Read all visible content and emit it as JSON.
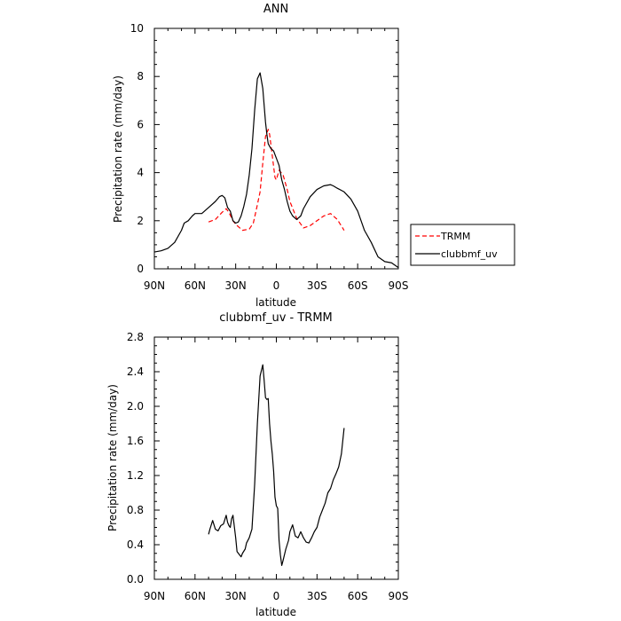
{
  "chart_data": [
    {
      "type": "line",
      "title": "ANN",
      "xlabel": "latitude",
      "ylabel": "Precipitation rate (mm/day)",
      "xlim": [
        90,
        -90
      ],
      "ylim": [
        0,
        10
      ],
      "x_ticks": [
        90,
        60,
        30,
        0,
        -30,
        -60,
        -90
      ],
      "x_tick_labels": [
        "90N",
        "60N",
        "30N",
        "0",
        "30S",
        "60S",
        "90S"
      ],
      "y_ticks": [
        0,
        2,
        4,
        6,
        8,
        10
      ],
      "y_tick_labels": [
        "0",
        "2",
        "4",
        "6",
        "8",
        "10"
      ],
      "grid": false,
      "legend_position": "right",
      "series": [
        {
          "name": "TRMM",
          "color": "#ff0000",
          "dash": "dashed",
          "x": [
            50,
            45,
            40,
            37,
            35,
            32,
            30,
            25,
            20,
            17,
            15,
            12,
            10,
            8,
            6,
            5,
            3,
            1,
            0,
            -2,
            -5,
            -8,
            -10,
            -15,
            -20,
            -25,
            -30,
            -35,
            -40,
            -45,
            -50
          ],
          "y": [
            1.95,
            2.05,
            2.35,
            2.5,
            2.35,
            2.0,
            1.85,
            1.6,
            1.65,
            1.9,
            2.4,
            3.2,
            4.4,
            5.5,
            5.8,
            5.6,
            4.7,
            3.8,
            3.7,
            4.1,
            3.9,
            3.3,
            2.8,
            2.1,
            1.7,
            1.8,
            2.0,
            2.2,
            2.3,
            2.05,
            1.6
          ]
        },
        {
          "name": "clubbmf_uv",
          "color": "#000000",
          "dash": "solid",
          "x": [
            90,
            85,
            80,
            75,
            70,
            68,
            65,
            62,
            60,
            56,
            55,
            50,
            45,
            42,
            40,
            38,
            36,
            34,
            32,
            30,
            28,
            26,
            24,
            22,
            20,
            18,
            16,
            14,
            12,
            10,
            8,
            7,
            6,
            5,
            4,
            3,
            2,
            1,
            0,
            -2,
            -4,
            -6,
            -8,
            -10,
            -12,
            -15,
            -18,
            -20,
            -25,
            -30,
            -35,
            -40,
            -42,
            -45,
            -50,
            -55,
            -60,
            -65,
            -70,
            -75,
            -80,
            -85,
            -90
          ],
          "y": [
            0.7,
            0.75,
            0.85,
            1.1,
            1.6,
            1.9,
            2.0,
            2.2,
            2.3,
            2.3,
            2.3,
            2.55,
            2.8,
            3.0,
            3.05,
            2.95,
            2.55,
            2.4,
            2.0,
            1.9,
            1.95,
            2.2,
            2.6,
            3.1,
            3.9,
            5.0,
            6.6,
            7.9,
            8.15,
            7.5,
            6.1,
            5.6,
            5.2,
            5.1,
            5.0,
            4.95,
            4.9,
            4.75,
            4.6,
            4.3,
            3.7,
            3.3,
            2.8,
            2.4,
            2.2,
            2.05,
            2.2,
            2.5,
            3.0,
            3.3,
            3.45,
            3.5,
            3.45,
            3.35,
            3.2,
            2.9,
            2.4,
            1.6,
            1.1,
            0.5,
            0.3,
            0.25,
            0.05
          ]
        }
      ]
    },
    {
      "type": "line",
      "title": "clubbmf_uv - TRMM",
      "xlabel": "latitude",
      "ylabel": "Precipitation rate (mm/day)",
      "xlim": [
        90,
        -90
      ],
      "ylim": [
        0,
        2.8
      ],
      "x_ticks": [
        90,
        60,
        30,
        0,
        -30,
        -60,
        -90
      ],
      "x_tick_labels": [
        "90N",
        "60N",
        "30N",
        "0",
        "30S",
        "60S",
        "90S"
      ],
      "y_ticks": [
        0,
        0.4,
        0.8,
        1.2,
        1.6,
        2.0,
        2.4,
        2.8
      ],
      "y_tick_labels": [
        "0.0",
        "0.4",
        "0.8",
        "1.2",
        "1.6",
        "2.0",
        "2.4",
        "2.8"
      ],
      "grid": false,
      "series": [
        {
          "color": "#000000",
          "dash": "solid",
          "x": [
            50,
            49,
            47,
            45,
            43,
            41,
            39,
            37,
            36,
            35,
            34,
            33,
            32,
            30,
            29,
            28,
            27,
            26,
            25,
            23,
            22,
            20,
            18,
            16,
            14,
            12,
            10,
            9,
            8,
            7,
            6,
            5,
            4,
            3,
            2,
            1,
            0,
            -1,
            -2,
            -3,
            -4,
            -5,
            -7,
            -9,
            -10,
            -12,
            -14,
            -16,
            -18,
            -20,
            -22,
            -24,
            -26,
            -28,
            -30,
            -32,
            -34,
            -36,
            -38,
            -40,
            -42,
            -44,
            -46,
            -48,
            -50
          ],
          "y": [
            0.52,
            0.58,
            0.68,
            0.58,
            0.56,
            0.62,
            0.64,
            0.74,
            0.66,
            0.62,
            0.6,
            0.7,
            0.74,
            0.48,
            0.32,
            0.3,
            0.28,
            0.26,
            0.3,
            0.35,
            0.42,
            0.48,
            0.58,
            1.1,
            1.8,
            2.35,
            2.48,
            2.3,
            2.1,
            2.08,
            2.09,
            1.8,
            1.6,
            1.45,
            1.25,
            0.95,
            0.85,
            0.82,
            0.45,
            0.28,
            0.16,
            0.22,
            0.35,
            0.45,
            0.55,
            0.63,
            0.5,
            0.48,
            0.55,
            0.48,
            0.43,
            0.42,
            0.48,
            0.55,
            0.6,
            0.72,
            0.8,
            0.88,
            1.0,
            1.05,
            1.15,
            1.22,
            1.3,
            1.45,
            1.75
          ]
        }
      ]
    }
  ]
}
